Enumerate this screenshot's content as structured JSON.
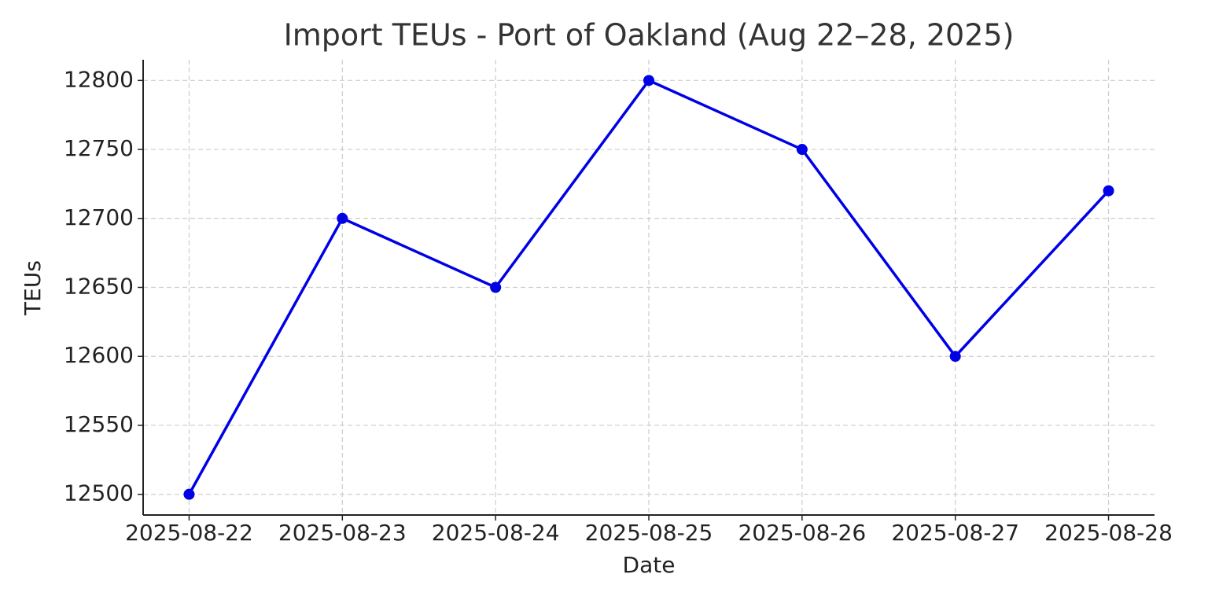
{
  "chart_data": {
    "type": "line",
    "title": "Import TEUs - Port of Oakland (Aug 22–28, 2025)",
    "x_label": "Date",
    "y_label": "TEUs",
    "x": [
      "2025-08-22",
      "2025-08-23",
      "2025-08-24",
      "2025-08-25",
      "2025-08-26",
      "2025-08-27",
      "2025-08-28"
    ],
    "series": [
      {
        "name": "Import TEUs",
        "color": "#0000e6",
        "values": [
          12500,
          12700,
          12650,
          12800,
          12750,
          12600,
          12720
        ]
      }
    ],
    "ylim": [
      12485,
      12815
    ],
    "yticks": [
      12500,
      12550,
      12600,
      12650,
      12700,
      12750,
      12800
    ],
    "grid": true
  }
}
